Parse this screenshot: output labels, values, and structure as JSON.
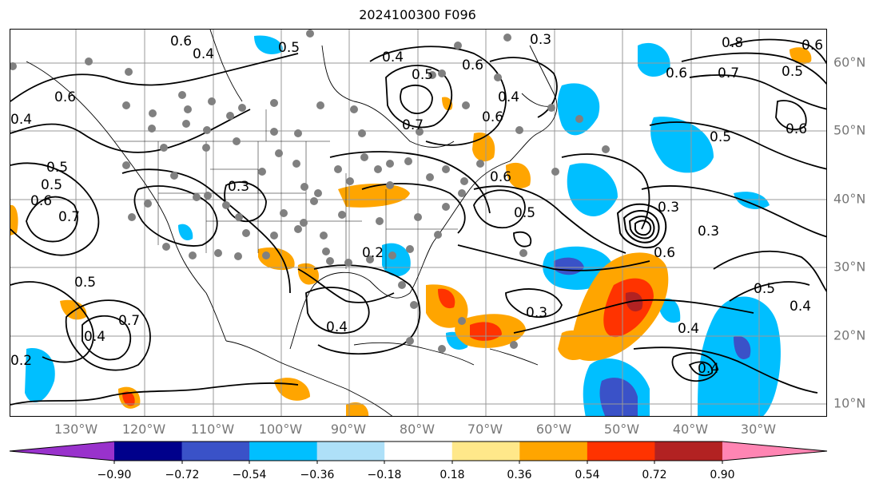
{
  "title": "2024100300 F096",
  "map": {
    "region": "North America and North Atlantic",
    "lon_range": [
      -137,
      -25
    ],
    "lat_range": [
      8,
      65
    ],
    "gridlines": true
  },
  "lon_labels": [
    "130°W",
    "120°W",
    "110°W",
    "100°W",
    "90°W",
    "80°W",
    "70°W",
    "60°W",
    "50°W",
    "40°W",
    "30°W"
  ],
  "lat_labels": [
    "60°N",
    "50°N",
    "40°N",
    "30°N",
    "20°N",
    "10°N"
  ],
  "colorbar": {
    "ticks": [
      "−0.90",
      "−0.72",
      "−0.54",
      "−0.36",
      "−0.18",
      "0.18",
      "0.36",
      "0.54",
      "0.72",
      "0.90"
    ],
    "colors": [
      "#9932cc",
      "#00008b",
      "#3a52c8",
      "#00bfff",
      "#aee0f8",
      "#ffffff",
      "#ffe88a",
      "#ffa500",
      "#ff3300",
      "#b22222",
      "#ff85b3"
    ],
    "extend": "both"
  },
  "contour_labels": [
    "0.6",
    "0.4",
    "0.5",
    "0.3",
    "0.4",
    "0.5",
    "0.6",
    "0.7",
    "0.6",
    "0.8",
    "0.7",
    "0.6",
    "0.5",
    "0.3",
    "0.4",
    "0.5",
    "0.6",
    "0.6",
    "0.3",
    "0.4",
    "0.3",
    "0.6",
    "0.5",
    "0.4",
    "0.3",
    "0.4",
    "0.5",
    "0.4",
    "0.2",
    "0.5",
    "0.4",
    "0.6",
    "0.7",
    "0.6",
    "0.5",
    "0.7",
    "0.2",
    "0.5",
    "0.6",
    "0.4"
  ],
  "colors": {
    "gridline": "#999999",
    "contour": "#000000",
    "station_marker": "#808080",
    "axis_label": "#777777"
  }
}
